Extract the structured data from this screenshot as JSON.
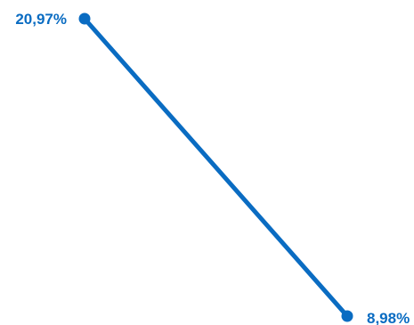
{
  "chart_data": {
    "type": "line",
    "x": [
      "",
      ""
    ],
    "series": [
      {
        "values": [
          20.97,
          8.98
        ],
        "labels": [
          "20,97%",
          "8,98%"
        ],
        "color": "#0a6cc2"
      }
    ],
    "ylim": [
      8.98,
      20.97
    ],
    "title": "",
    "xlabel": "",
    "ylabel": "",
    "grid": false,
    "legend": "none"
  }
}
